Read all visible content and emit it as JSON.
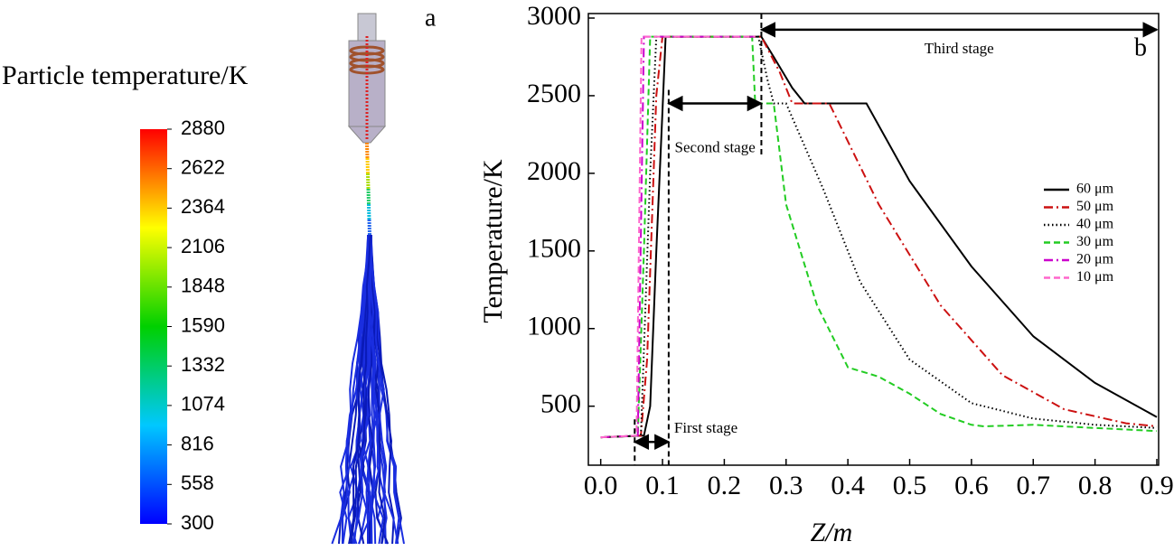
{
  "panel_a": {
    "label": "a",
    "colorbar_title": "Particle temperature/K",
    "clim": [
      300,
      2880
    ],
    "colorbar_ticks": [
      2880,
      2622,
      2364,
      2106,
      1848,
      1590,
      1332,
      1074,
      816,
      558,
      300
    ],
    "colors": [
      "#0000ff",
      "#00c8ff",
      "#00d000",
      "#ffff00",
      "#ff0000"
    ]
  },
  "chart_data": {
    "type": "line",
    "label": "b",
    "xlabel": "Z/m",
    "ylabel": "Temperature/K",
    "xlim": [
      -0.02,
      0.9
    ],
    "ylim": [
      120,
      3000
    ],
    "xticks": [
      {
        "value": 0,
        "label": "0.0"
      },
      0.1,
      0.2,
      0.3,
      0.4,
      0.5,
      0.6,
      0.7,
      0.8,
      0.9
    ],
    "yticks": [
      500,
      1000,
      1500,
      2000,
      2500,
      3000
    ],
    "legend": "right",
    "series": [
      {
        "name": "60 μm",
        "color": "#000000",
        "linestyle": "solid",
        "x": [
          0,
          0.07,
          0.08,
          0.09,
          0.1,
          0.105,
          0.26,
          0.28,
          0.31,
          0.33,
          0.43,
          0.5,
          0.6,
          0.7,
          0.8,
          0.9
        ],
        "values": [
          300,
          310,
          500,
          1500,
          2400,
          2880,
          2880,
          2750,
          2550,
          2450,
          2450,
          1950,
          1400,
          950,
          650,
          430
        ]
      },
      {
        "name": "50 μm",
        "color": "#cc1111",
        "linestyle": "dashdot",
        "x": [
          0,
          0.065,
          0.075,
          0.09,
          0.1,
          0.26,
          0.29,
          0.31,
          0.37,
          0.45,
          0.55,
          0.65,
          0.75,
          0.85,
          0.9
        ],
        "values": [
          300,
          310,
          800,
          2500,
          2880,
          2880,
          2650,
          2450,
          2450,
          1800,
          1150,
          700,
          480,
          390,
          370
        ]
      },
      {
        "name": "40 μm",
        "color": "#000000",
        "linestyle": "dotted",
        "x": [
          0,
          0.065,
          0.08,
          0.09,
          0.255,
          0.27,
          0.28,
          0.3,
          0.36,
          0.42,
          0.5,
          0.6,
          0.7,
          0.8,
          0.9
        ],
        "values": [
          300,
          310,
          2000,
          2880,
          2880,
          2600,
          2450,
          2450,
          1900,
          1300,
          800,
          520,
          420,
          380,
          360
        ]
      },
      {
        "name": "30 μm",
        "color": "#22cc22",
        "linestyle": "dashed",
        "x": [
          0,
          0.06,
          0.07,
          0.08,
          0.245,
          0.25,
          0.28,
          0.3,
          0.35,
          0.4,
          0.45,
          0.5,
          0.55,
          0.6,
          0.62,
          0.7,
          0.8,
          0.9
        ],
        "values": [
          300,
          310,
          1500,
          2880,
          2880,
          2450,
          2450,
          1800,
          1150,
          750,
          690,
          580,
          450,
          380,
          370,
          380,
          360,
          340
        ]
      },
      {
        "name": "20 μm",
        "color": "#cc00cc",
        "linestyle": "dashdot",
        "x": [
          0,
          0.06,
          0.07,
          0.25
        ],
        "values": [
          300,
          310,
          2880,
          2880
        ]
      },
      {
        "name": "10 μm",
        "color": "#ff66cc",
        "linestyle": "dashed",
        "x": [
          0,
          0.058,
          0.066,
          0.25
        ],
        "values": [
          300,
          310,
          2880,
          2880
        ]
      }
    ],
    "annotations": [
      {
        "text": "First stage",
        "x": [
          0.055,
          0.11
        ],
        "y": 270
      },
      {
        "text": "Second stage",
        "x": [
          0.11,
          0.26
        ],
        "y": 2450
      },
      {
        "text": "Third stage",
        "x": [
          0.26,
          0.9
        ],
        "y": 2925
      }
    ]
  }
}
